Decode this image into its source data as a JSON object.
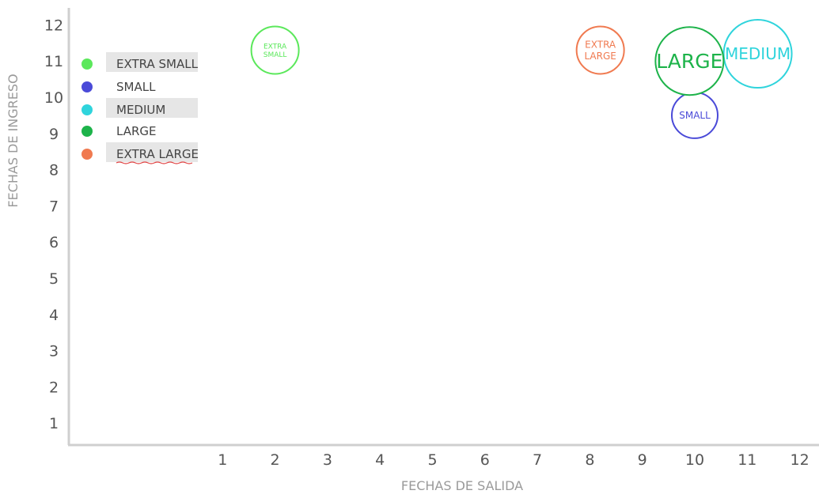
{
  "chart_data": {
    "type": "scatter",
    "title": "",
    "xlabel": "FECHAS DE SALIDA",
    "ylabel": "FECHAS DE INGRESO",
    "xlim": [
      0,
      12
    ],
    "ylim": [
      0,
      12
    ],
    "x_ticks": [
      "1",
      "2",
      "3",
      "4",
      "5",
      "6",
      "7",
      "8",
      "9",
      "10",
      "11",
      "12"
    ],
    "y_ticks": [
      "1",
      "2",
      "3",
      "4",
      "5",
      "6",
      "7",
      "8",
      "9",
      "10",
      "11",
      "12"
    ],
    "legend_position": "top-left",
    "series": [
      {
        "name": "EXTRA SMALL",
        "color": "#5be85b",
        "points": [
          {
            "x": 2.0,
            "y": 11.3,
            "label": "EXTRA SMALL"
          }
        ]
      },
      {
        "name": "SMALL",
        "color": "#4a4ad8",
        "points": [
          {
            "x": 10.0,
            "y": 9.5,
            "label": "SMALL"
          }
        ]
      },
      {
        "name": "MEDIUM",
        "color": "#2fd4dc",
        "points": [
          {
            "x": 11.2,
            "y": 11.2,
            "label": "MEDIUM"
          }
        ]
      },
      {
        "name": "LARGE",
        "color": "#1db34a",
        "points": [
          {
            "x": 9.9,
            "y": 11.0,
            "label": "LARGE"
          }
        ]
      },
      {
        "name": "EXTRA LARGE",
        "color": "#f07a50",
        "points": [
          {
            "x": 8.2,
            "y": 11.3,
            "label": "EXTRA LARGE"
          }
        ]
      }
    ]
  }
}
